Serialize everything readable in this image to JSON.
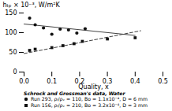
{
  "chart_data": {
    "type": "scatter",
    "xlabel": "Quality, x",
    "ylabel": "hₜₚ × 10⁻³, W/m²K",
    "xlim": [
      0.0,
      0.5
    ],
    "ylim": [
      0,
      150
    ],
    "xticks": [
      {
        "value": 0.0,
        "label": "0.0"
      },
      0.1,
      0.2,
      0.3,
      0.4,
      0.5
    ],
    "yticks": [
      0,
      50,
      100,
      150
    ],
    "series": [
      {
        "type": "line",
        "x": [
          0.0,
          0.4
        ],
        "values": [
          122,
          93
        ],
        "color": "#444444",
        "line_style": "solid"
      },
      {
        "type": "line",
        "x": [
          0.0,
          0.42
        ],
        "values": [
          47,
          105
        ],
        "color": "#444444",
        "line_style": "dashed"
      },
      {
        "type": "scatter",
        "name": "Run 293, ρₗ/ρᵥ = 110, Bo = 1.1x10⁻⁴, D = 6 mm",
        "x": [
          0.02,
          0.04,
          0.07,
          0.1,
          0.13,
          0.16,
          0.19,
          0.22
        ],
        "values": [
          137,
          120,
          112,
          96,
          109,
          107,
          99,
          110
        ],
        "color": "#111111",
        "marker": "circle"
      },
      {
        "type": "scatter",
        "name": "Run 156, ρₗ/ρᵥ = 210, Bo = 3.2x10⁻⁴, D = 3 mm",
        "x": [
          0.02,
          0.04,
          0.1,
          0.14,
          0.18,
          0.21,
          0.3,
          0.4
        ],
        "values": [
          55,
          58,
          62,
          67,
          72,
          78,
          84,
          87
        ],
        "color": "#111111",
        "marker": "square"
      }
    ],
    "legend": "bottom",
    "annotations": [
      {
        "text": "Schrock and Grossman's data, Water"
      }
    ]
  }
}
